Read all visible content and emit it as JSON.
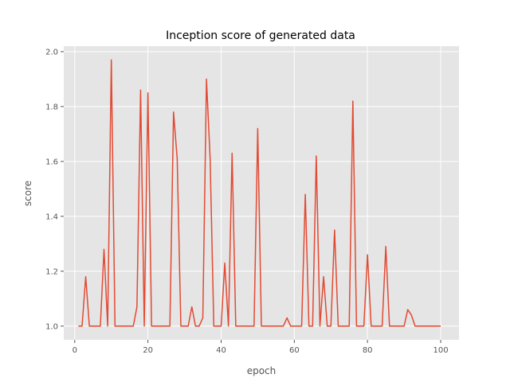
{
  "chart_data": {
    "type": "line",
    "title": "Inception score of generated data",
    "xlabel": "epoch",
    "ylabel": "score",
    "xlim": [
      -3,
      105
    ],
    "ylim": [
      0.95,
      2.02
    ],
    "xticks": [
      0,
      20,
      40,
      60,
      80,
      100
    ],
    "yticks": [
      1.0,
      1.2,
      1.4,
      1.6,
      1.8,
      2.0
    ],
    "xtick_labels": [
      "0",
      "20",
      "40",
      "60",
      "80",
      "100"
    ],
    "ytick_labels": [
      "1.0",
      "1.2",
      "1.4",
      "1.6",
      "1.8",
      "2.0"
    ],
    "grid": true,
    "style": "ggplot",
    "colors": {
      "background": "#E5E5E5",
      "grid": "#FFFFFF",
      "line": "#E24A33",
      "text": "#555555"
    },
    "series": [
      {
        "x": [
          1,
          2,
          3,
          4,
          5,
          6,
          7,
          8,
          9,
          10,
          11,
          12,
          13,
          14,
          15,
          16,
          17,
          18,
          19,
          20,
          21,
          22,
          23,
          24,
          25,
          26,
          27,
          28,
          29,
          30,
          31,
          32,
          33,
          34,
          35,
          36,
          37,
          38,
          39,
          40,
          41,
          42,
          43,
          44,
          45,
          46,
          47,
          48,
          49,
          50,
          51,
          52,
          53,
          54,
          55,
          56,
          57,
          58,
          59,
          60,
          61,
          62,
          63,
          64,
          65,
          66,
          67,
          68,
          69,
          70,
          71,
          72,
          73,
          74,
          75,
          76,
          77,
          78,
          79,
          80,
          81,
          82,
          83,
          84,
          85,
          86,
          87,
          88,
          89,
          90,
          91,
          92,
          93,
          94,
          95,
          96,
          97,
          98,
          99,
          100
        ],
        "values": [
          1.0,
          1.0,
          1.18,
          1.0,
          1.0,
          1.0,
          1.0,
          1.28,
          1.0,
          1.97,
          1.0,
          1.0,
          1.0,
          1.0,
          1.0,
          1.0,
          1.07,
          1.86,
          1.0,
          1.85,
          1.0,
          1.0,
          1.0,
          1.0,
          1.0,
          1.0,
          1.78,
          1.61,
          1.0,
          1.0,
          1.0,
          1.07,
          1.0,
          1.0,
          1.03,
          1.9,
          1.61,
          1.0,
          1.0,
          1.0,
          1.23,
          1.0,
          1.63,
          1.0,
          1.0,
          1.0,
          1.0,
          1.0,
          1.0,
          1.72,
          1.0,
          1.0,
          1.0,
          1.0,
          1.0,
          1.0,
          1.0,
          1.03,
          1.0,
          1.0,
          1.0,
          1.0,
          1.48,
          1.0,
          1.0,
          1.62,
          1.0,
          1.18,
          1.0,
          1.0,
          1.35,
          1.0,
          1.0,
          1.0,
          1.0,
          1.82,
          1.0,
          1.0,
          1.0,
          1.26,
          1.0,
          1.0,
          1.0,
          1.0,
          1.29,
          1.0,
          1.0,
          1.0,
          1.0,
          1.0,
          1.06,
          1.04,
          1.0,
          1.0,
          1.0,
          1.0,
          1.0,
          1.0,
          1.0,
          1.0
        ]
      }
    ]
  }
}
